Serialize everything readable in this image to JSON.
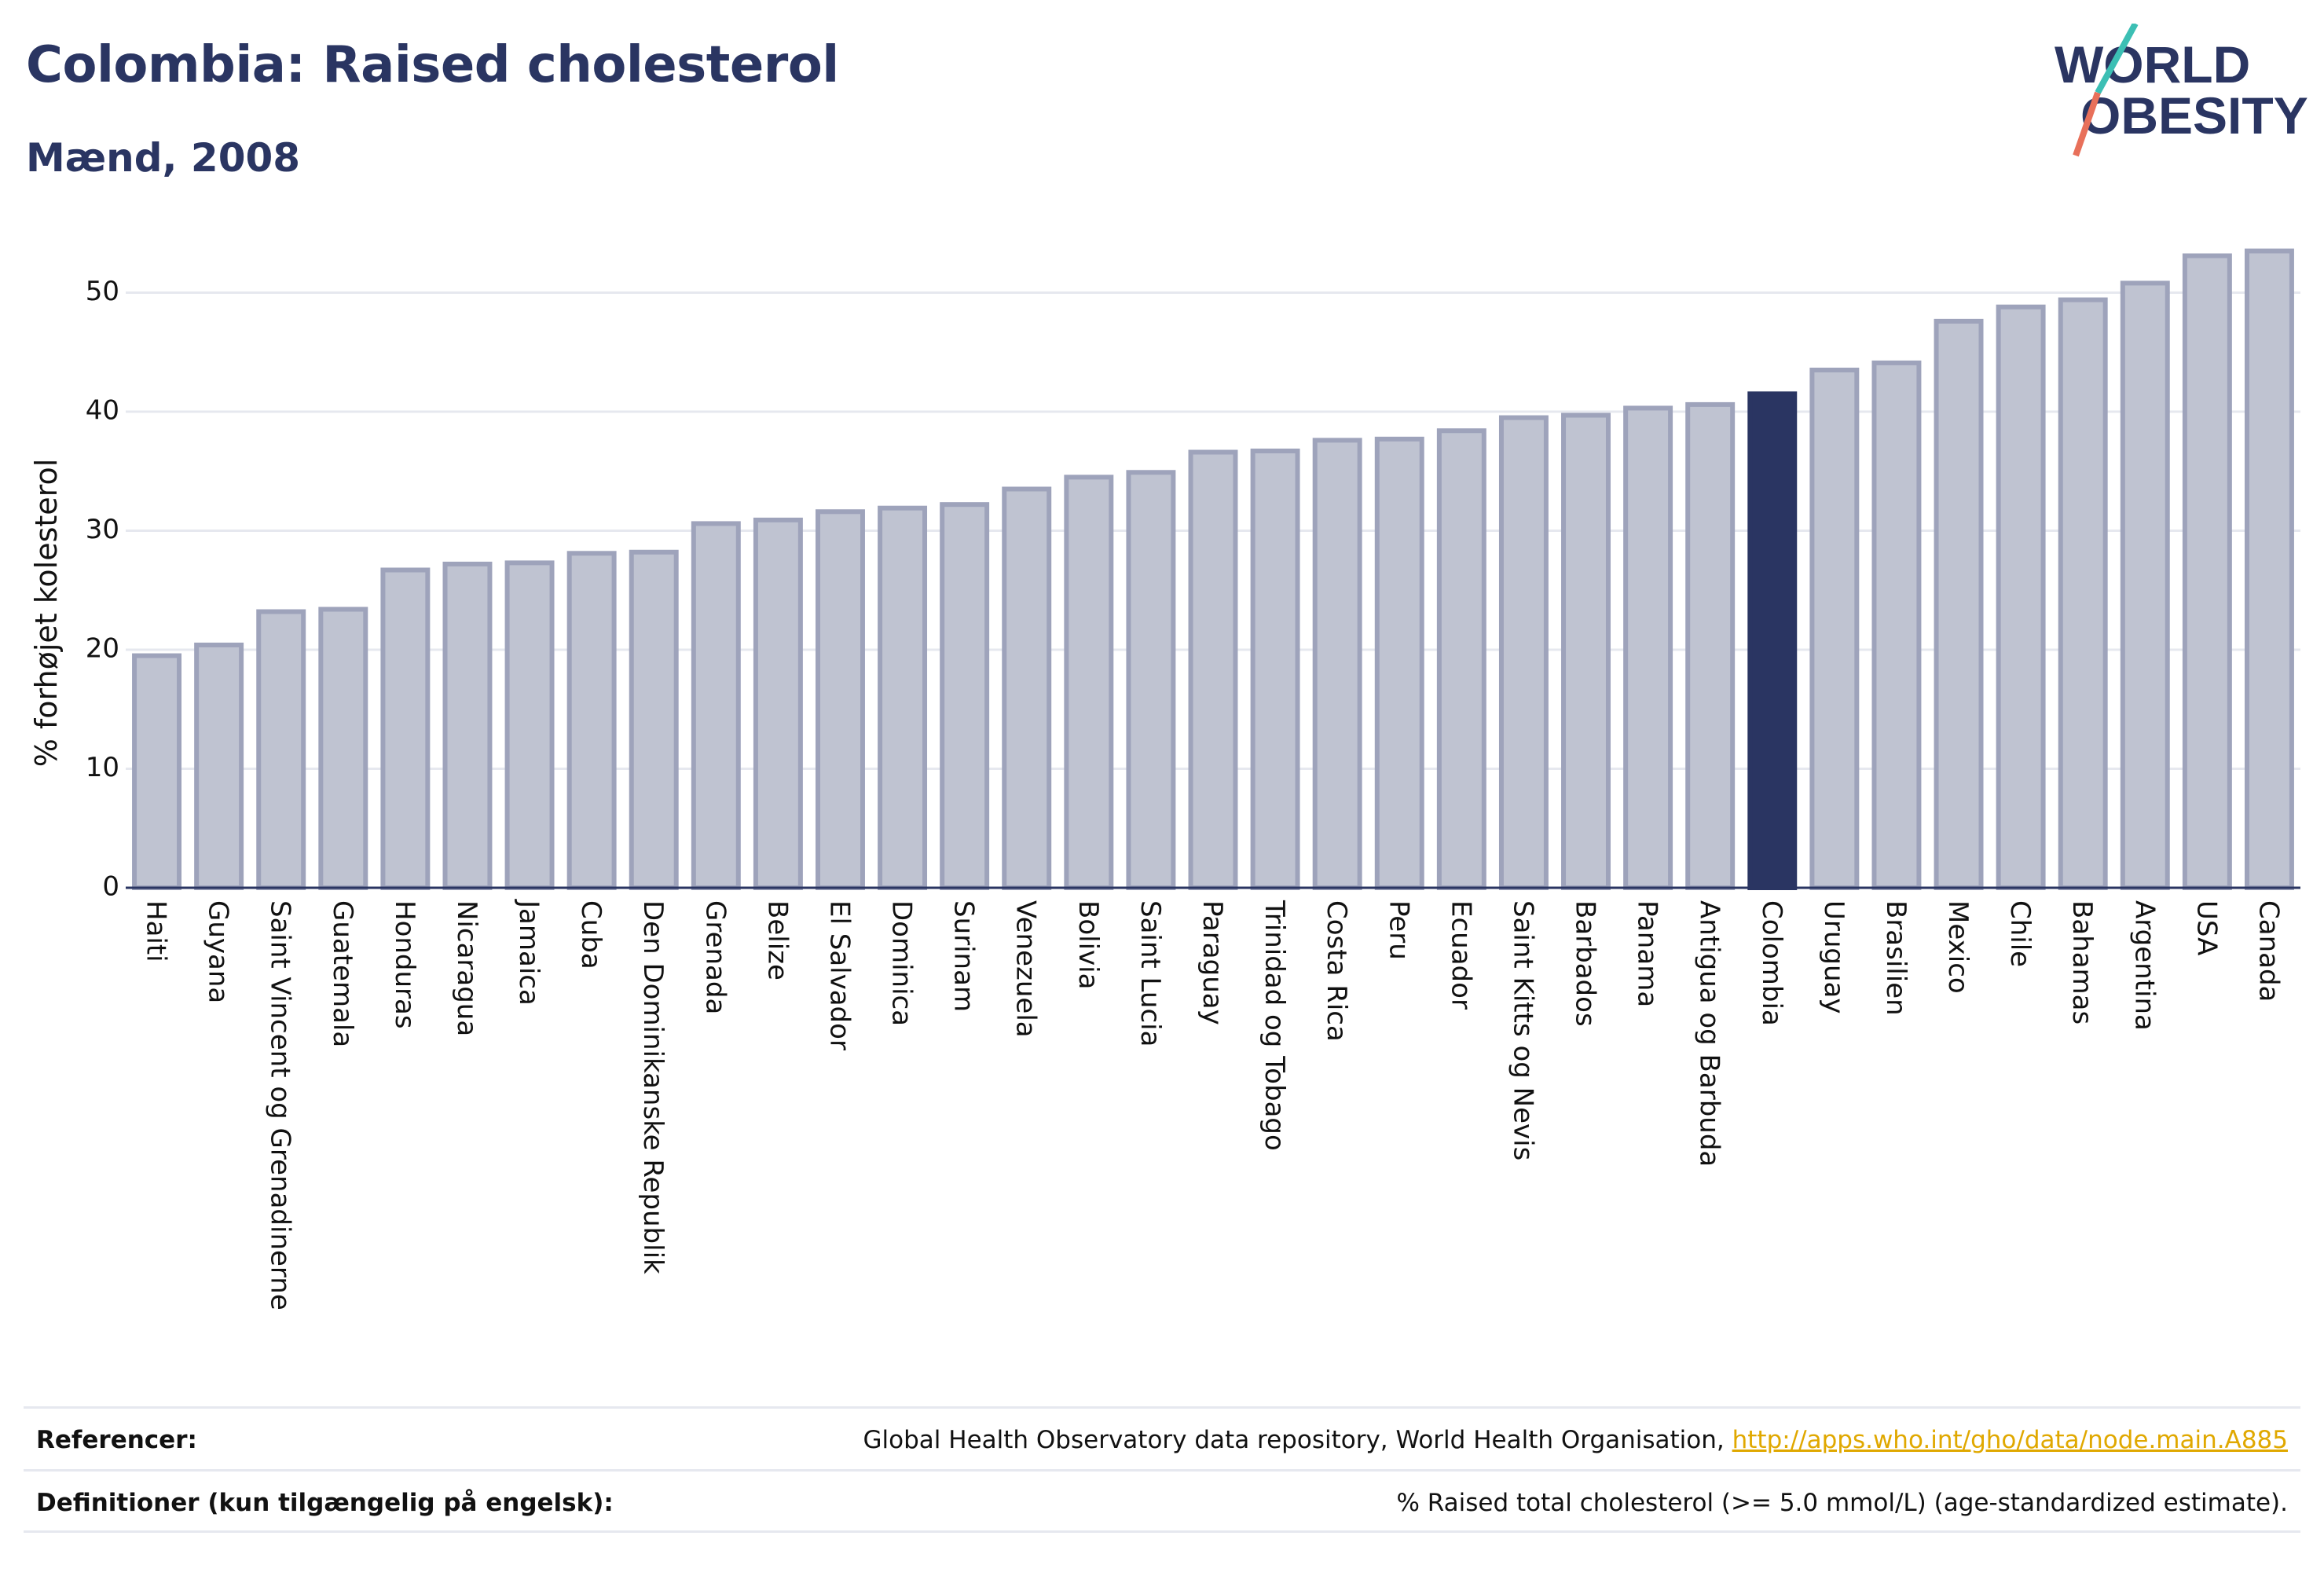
{
  "header": {
    "title": "Colombia: Raised cholesterol",
    "subtitle": "Mænd, 2008"
  },
  "logo": {
    "line1": "WORLD",
    "line2": "OBESITY"
  },
  "colors": {
    "bar": "#bfc3d1",
    "bar_stroke": "#9ea3bb",
    "highlight": "#2a3562",
    "grid": "#e6e8ef",
    "axis": "#2a3562",
    "logo_slash_teal": "#3cbfb4",
    "logo_slash_coral": "#e8705a"
  },
  "chart_data": {
    "type": "bar",
    "ylabel": "% forhøjet kolesterol",
    "ylim": [
      0,
      55
    ],
    "yticks": [
      0,
      10,
      20,
      30,
      40,
      50
    ],
    "grid": true,
    "highlight": "Colombia",
    "categories": [
      "Haiti",
      "Guyana",
      "Saint Vincent og Grenadinerne",
      "Guatemala",
      "Honduras",
      "Nicaragua",
      "Jamaica",
      "Cuba",
      "Den Dominikanske Republik",
      "Grenada",
      "Belize",
      "El Salvador",
      "Dominica",
      "Surinam",
      "Venezuela",
      "Bolivia",
      "Saint Lucia",
      "Paraguay",
      "Trinidad og Tobago",
      "Costa Rica",
      "Peru",
      "Ecuador",
      "Saint Kitts og Nevis",
      "Barbados",
      "Panama",
      "Antigua og Barbuda",
      "Colombia",
      "Uruguay",
      "Brasilien",
      "Mexico",
      "Chile",
      "Bahamas",
      "Argentina",
      "USA",
      "Canada"
    ],
    "values": [
      19.5,
      20.4,
      23.2,
      23.4,
      26.7,
      27.2,
      27.3,
      28.1,
      28.2,
      30.6,
      30.9,
      31.6,
      31.9,
      32.2,
      33.5,
      34.5,
      34.9,
      36.6,
      36.7,
      37.6,
      37.7,
      38.4,
      39.5,
      39.7,
      40.3,
      40.6,
      41.5,
      43.5,
      44.1,
      47.6,
      48.8,
      49.4,
      50.8,
      53.1,
      53.5
    ]
  },
  "footer": {
    "references_label": "Referencer:",
    "references_text": "Global Health Observatory data repository, World Health Organisation, ",
    "references_link": "http://apps.who.int/gho/data/node.main.A885",
    "definitions_label": "Definitioner (kun tilgængelig på engelsk):",
    "definitions_text": "% Raised total cholesterol (>= 5.0 mmol/L) (age-standardized estimate)."
  }
}
